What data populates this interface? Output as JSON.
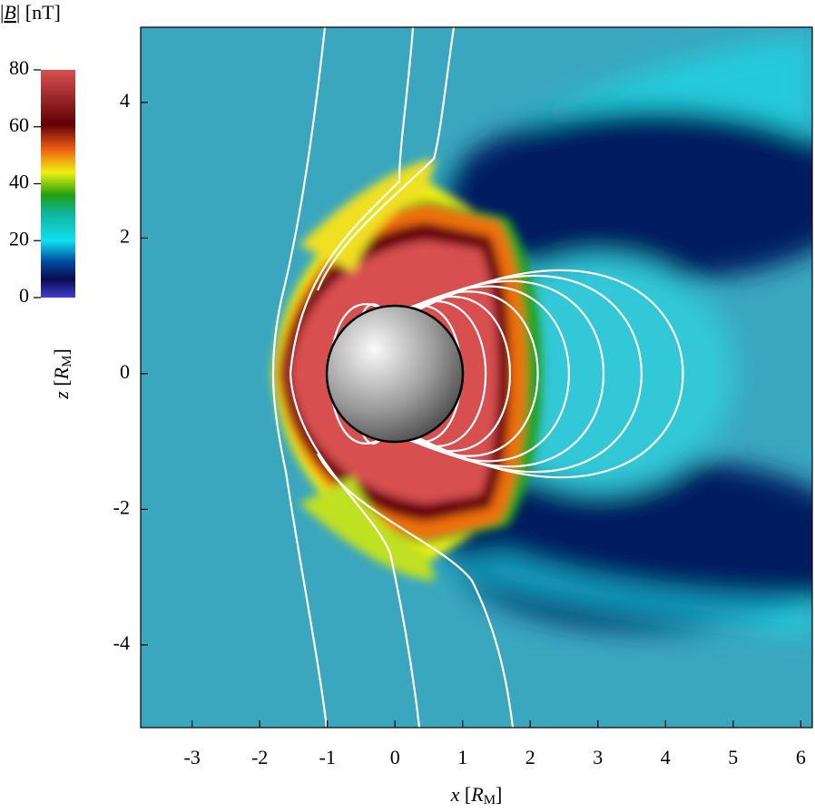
{
  "chart_data": {
    "type": "heatmap",
    "x_label": {
      "var": "x",
      "unit": "R",
      "unit_sub": "M"
    },
    "y_label": {
      "var": "z",
      "unit": "R",
      "unit_sub": "M"
    },
    "xlim": [
      -3.76,
      6.17
    ],
    "xticks": [
      -3,
      -2,
      -1,
      0,
      1,
      2,
      3,
      4,
      5,
      6
    ],
    "ylim": [
      -5.22,
      5.11
    ],
    "yticks": [
      -4,
      -2,
      0,
      2,
      4
    ],
    "colorbar": {
      "label": {
        "var": "B",
        "unit": "nT"
      },
      "lim": [
        0,
        80
      ],
      "ticks": [
        0,
        20,
        40,
        60,
        80
      ]
    }
  }
}
